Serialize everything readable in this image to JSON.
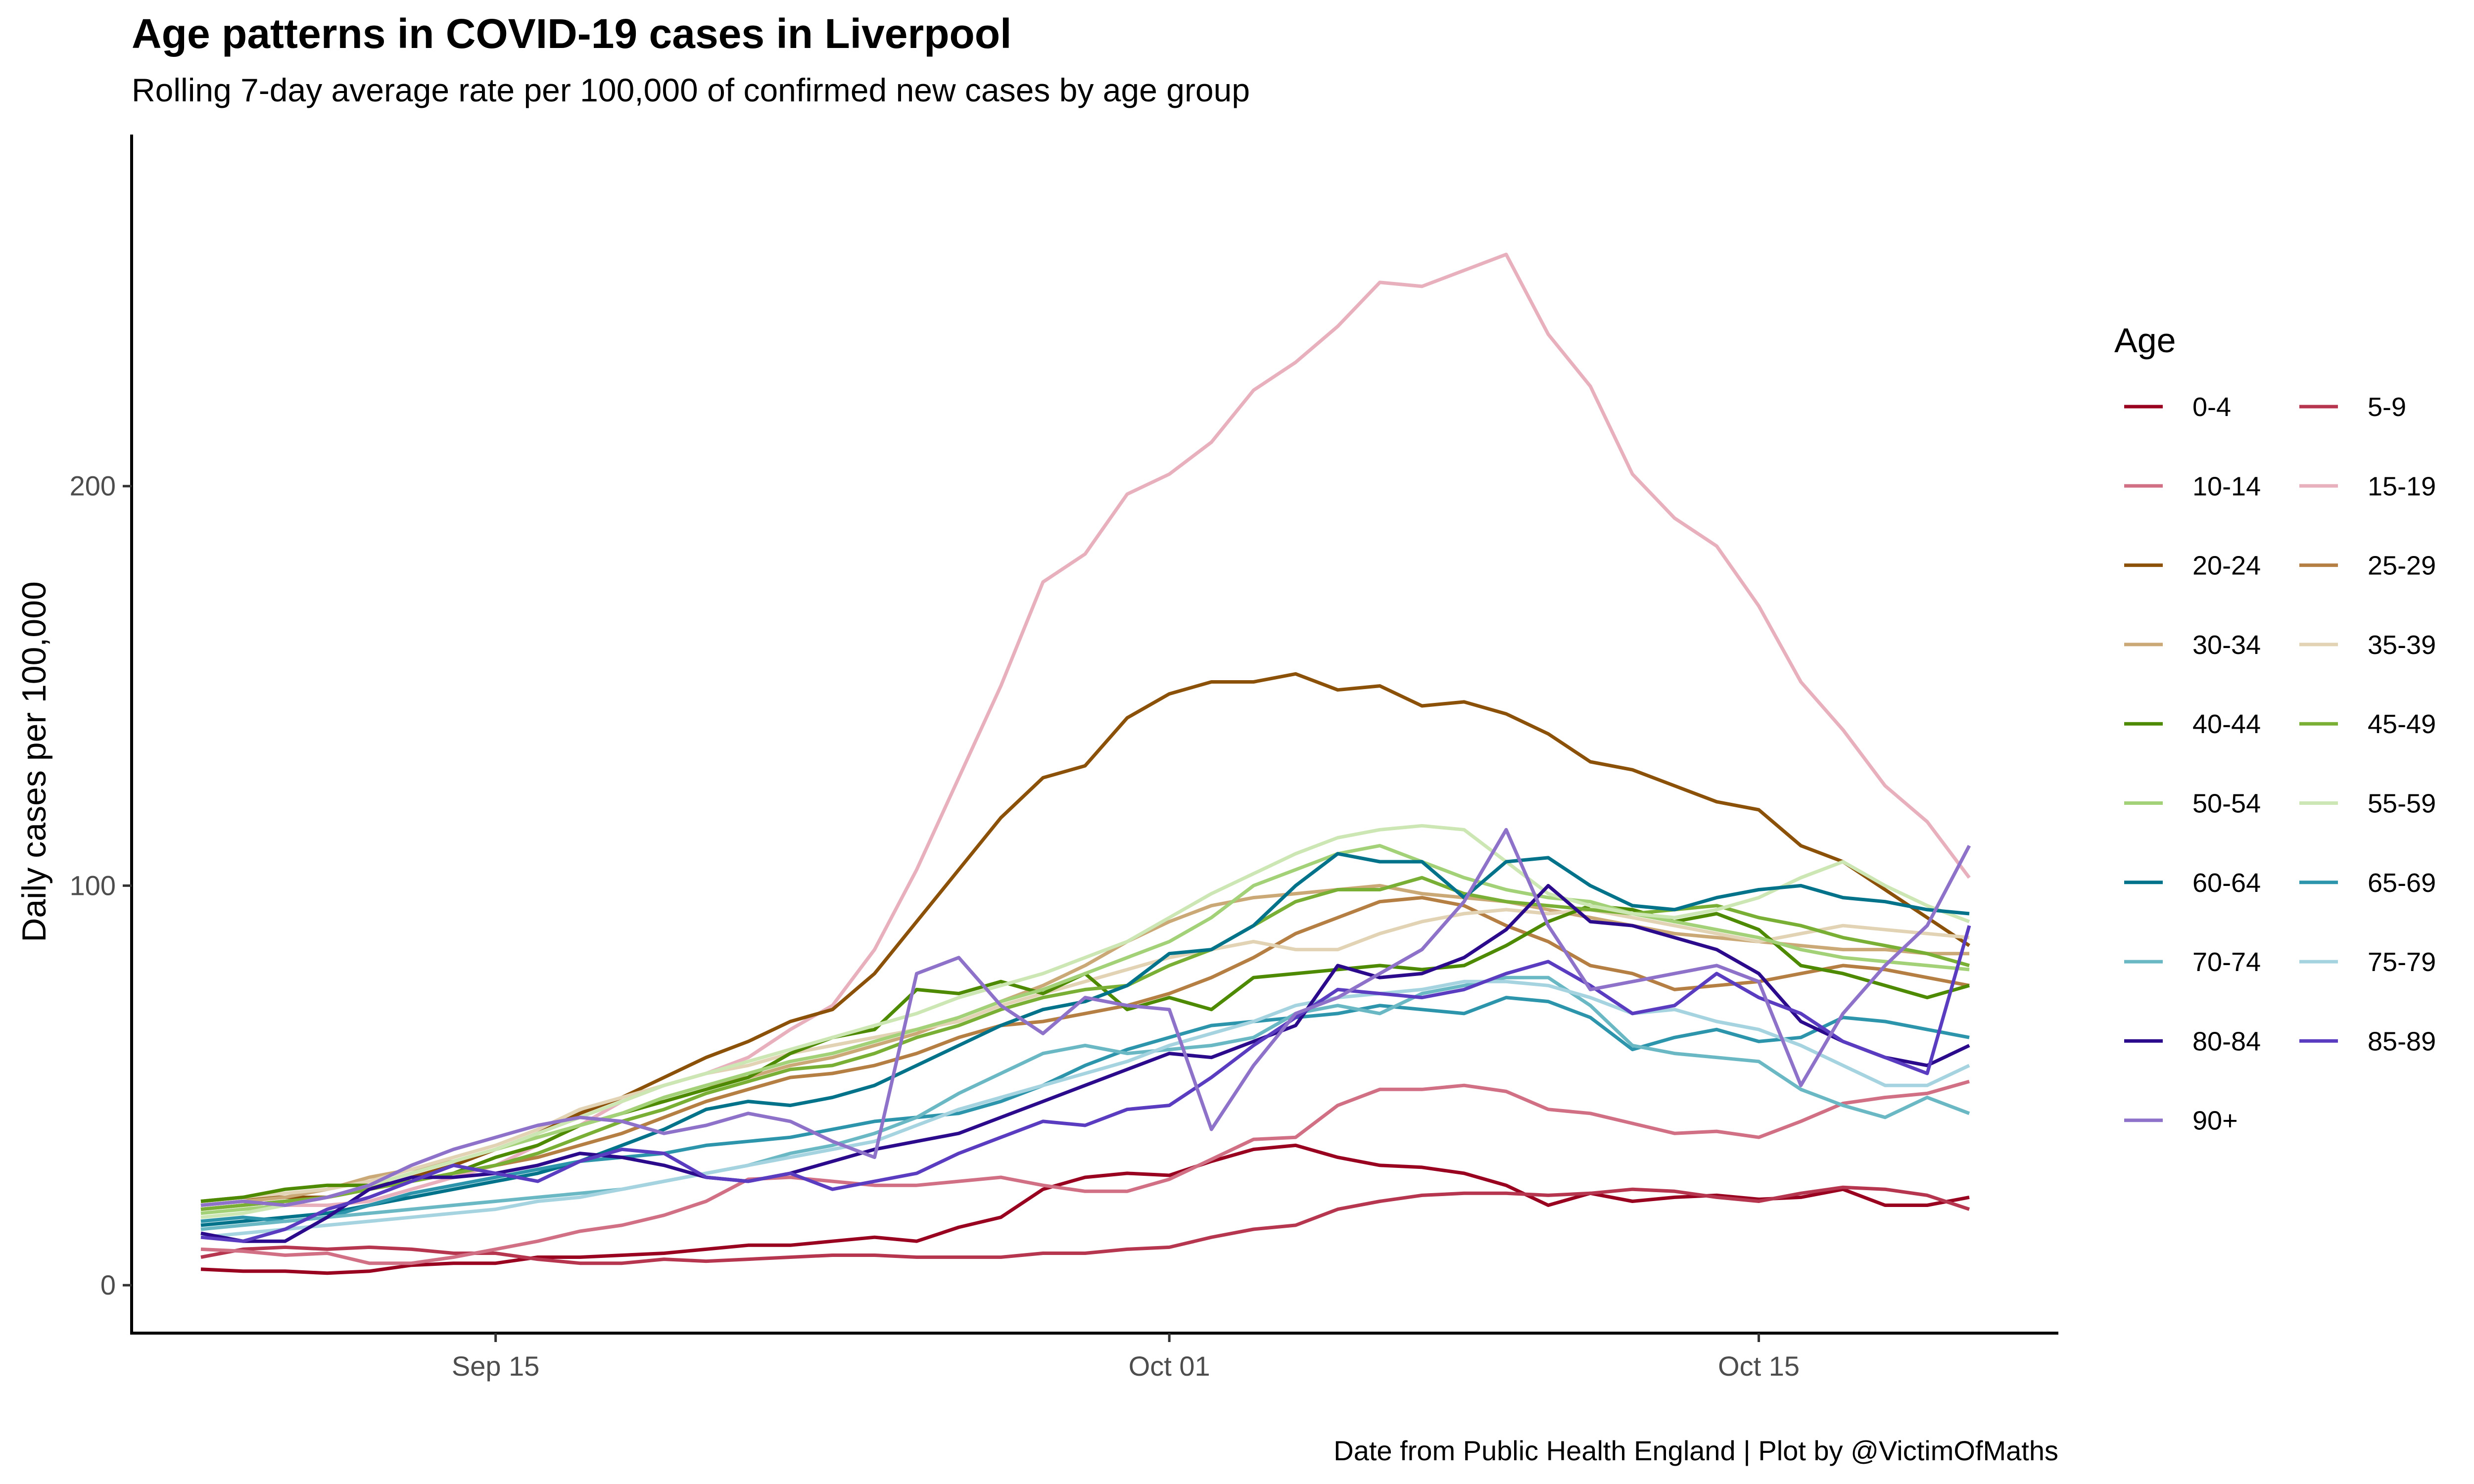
{
  "chart_data": {
    "type": "line",
    "title": "Age patterns in COVID-19 cases in Liverpool",
    "subtitle": "Rolling 7-day average rate per 100,000 of confirmed new cases by age group",
    "xlabel": "",
    "ylabel": "Daily cases per 100,000",
    "caption": "Date from Public Health England | Plot by @VictimOfMaths",
    "legend_title": "Age",
    "legend_position": "right",
    "grid": false,
    "x": [
      "Sep 08",
      "Sep 09",
      "Sep 10",
      "Sep 11",
      "Sep 12",
      "Sep 13",
      "Sep 14",
      "Sep 15",
      "Sep 16",
      "Sep 17",
      "Sep 18",
      "Sep 19",
      "Sep 20",
      "Sep 21",
      "Sep 22",
      "Sep 23",
      "Sep 24",
      "Sep 25",
      "Sep 26",
      "Sep 27",
      "Sep 28",
      "Sep 29",
      "Sep 30",
      "Oct 01",
      "Oct 02",
      "Oct 03",
      "Oct 04",
      "Oct 05",
      "Oct 06",
      "Oct 07",
      "Oct 08",
      "Oct 09",
      "Oct 10",
      "Oct 11",
      "Oct 12",
      "Oct 13",
      "Oct 14",
      "Oct 15",
      "Oct 16",
      "Oct 17",
      "Oct 18",
      "Oct 19",
      "Oct 20"
    ],
    "x_ticks": [
      "Sep 15",
      "Oct 01",
      "Oct 15"
    ],
    "x_tick_index": [
      7,
      23,
      37
    ],
    "ylim": [
      -12,
      288
    ],
    "y_ticks": [
      0,
      100,
      200
    ],
    "series": [
      {
        "name": "0-4",
        "color": "#99001f",
        "values": [
          4,
          3.5,
          3.5,
          3,
          3.5,
          5,
          5.5,
          5.5,
          7,
          7,
          7.5,
          8,
          9,
          10,
          10,
          11,
          12,
          11,
          14.5,
          17,
          24,
          27,
          28,
          27.5,
          31,
          34,
          35,
          32,
          30,
          29.5,
          28,
          25,
          20,
          23,
          21,
          22,
          22.5,
          21.5,
          22,
          24,
          20,
          20,
          22
        ]
      },
      {
        "name": "5-9",
        "color": "#b5364e",
        "values": [
          7,
          9,
          9.5,
          9,
          9.5,
          9,
          8,
          8,
          6.5,
          5.5,
          5.5,
          6.5,
          6,
          6.5,
          7,
          7.5,
          7.5,
          7,
          7,
          7,
          8,
          8,
          9,
          9.5,
          12,
          14,
          15,
          19,
          21,
          22.5,
          23,
          23,
          22.5,
          23,
          24,
          23.5,
          22,
          21,
          23,
          24.5,
          24,
          22.5,
          19
        ]
      },
      {
        "name": "10-14",
        "color": "#d16f84",
        "values": [
          9,
          8.5,
          7.5,
          8,
          5.5,
          5.5,
          7,
          9,
          11,
          13.5,
          15,
          17.5,
          21,
          26.5,
          27,
          26,
          25,
          25,
          26,
          27,
          25,
          23.5,
          23.5,
          26.5,
          31.5,
          36.5,
          37,
          45,
          49,
          49,
          50,
          48.5,
          44,
          43,
          40.5,
          38,
          38.5,
          37,
          41,
          45.5,
          47,
          48,
          51
        ]
      },
      {
        "name": "15-19",
        "color": "#e8b0bc",
        "values": [
          20,
          21,
          20,
          20,
          21,
          24,
          27,
          30,
          35,
          40,
          46,
          50,
          53,
          57,
          64,
          70,
          84,
          104,
          127,
          150,
          176,
          183,
          198,
          203,
          211,
          224,
          231,
          240,
          251,
          250,
          254,
          258,
          238,
          225,
          203,
          192,
          185,
          170,
          151,
          139,
          125,
          116,
          102
        ]
      },
      {
        "name": "20-24",
        "color": "#8c5109",
        "values": [
          21,
          22,
          22,
          22,
          24,
          27,
          30,
          34,
          38,
          43,
          47,
          52,
          57,
          61,
          66,
          69,
          78,
          91,
          104,
          117,
          127,
          130,
          142,
          148,
          151,
          151,
          153,
          149,
          150,
          145,
          146,
          143,
          138,
          131,
          129,
          125,
          121,
          119,
          110,
          106,
          99,
          92,
          85
        ]
      },
      {
        "name": "25-29",
        "color": "#b57f44",
        "values": [
          19,
          20,
          21,
          22,
          24,
          26,
          28,
          30,
          32,
          35,
          38,
          42,
          46,
          49,
          52,
          53,
          55,
          58,
          62,
          65,
          66,
          68,
          70,
          73,
          77,
          82,
          88,
          92,
          96,
          97,
          95,
          90,
          86,
          80,
          78,
          74,
          75,
          76,
          78,
          80,
          79,
          77,
          75
        ]
      },
      {
        "name": "30-34",
        "color": "#cba977",
        "values": [
          20,
          21,
          22,
          24,
          27,
          29,
          31,
          34,
          37,
          40,
          43,
          47,
          50,
          52,
          55,
          57,
          60,
          63,
          67,
          71,
          75,
          80,
          86,
          91,
          95,
          97,
          98,
          99,
          100,
          98,
          97,
          96,
          94,
          92,
          90,
          88,
          87,
          86,
          85,
          84,
          84,
          83,
          83
        ]
      },
      {
        "name": "35-39",
        "color": "#e2d3b5",
        "values": [
          21,
          22,
          23,
          24,
          26,
          29,
          32,
          35,
          39,
          44,
          47,
          50,
          53,
          55,
          58,
          60,
          62,
          64,
          66,
          70,
          73,
          76,
          79,
          82,
          84,
          86,
          84,
          84,
          88,
          91,
          93,
          94,
          93,
          94,
          92,
          90,
          88,
          86,
          88,
          90,
          89,
          88,
          87
        ]
      },
      {
        "name": "40-44",
        "color": "#4e8a00",
        "values": [
          21,
          22,
          24,
          25,
          25,
          26,
          28,
          32,
          35,
          40,
          43,
          46,
          49,
          52,
          58,
          62,
          64,
          74,
          73,
          76,
          73,
          78,
          69,
          72,
          69,
          77,
          78,
          79,
          80,
          79,
          80,
          85,
          91,
          95,
          94,
          91,
          93,
          89,
          80,
          78,
          75,
          72,
          75
        ]
      },
      {
        "name": "45-49",
        "color": "#7aaf35",
        "values": [
          19,
          20,
          21,
          22,
          24,
          26,
          28,
          30,
          33,
          37,
          41,
          44,
          48,
          51,
          54,
          55,
          58,
          62,
          65,
          69,
          72,
          74,
          75,
          80,
          84,
          90,
          96,
          99,
          99,
          102,
          98,
          96,
          95,
          94,
          93,
          94,
          95,
          92,
          90,
          87,
          85,
          83,
          80
        ]
      },
      {
        "name": "50-54",
        "color": "#a3d177",
        "values": [
          18,
          19,
          20,
          22,
          25,
          28,
          31,
          34,
          37,
          40,
          43,
          47,
          50,
          53,
          56,
          58,
          61,
          64,
          67,
          71,
          74,
          78,
          82,
          86,
          92,
          100,
          104,
          108,
          110,
          106,
          102,
          99,
          97,
          96,
          93,
          91,
          89,
          87,
          84,
          82,
          81,
          80,
          79
        ]
      },
      {
        "name": "55-59",
        "color": "#cde7b4",
        "values": [
          17,
          18,
          20,
          22,
          25,
          28,
          31,
          34,
          38,
          42,
          46,
          50,
          53,
          56,
          59,
          62,
          65,
          68,
          72,
          75,
          78,
          82,
          86,
          92,
          98,
          103,
          108,
          112,
          114,
          115,
          114,
          106,
          98,
          95,
          93,
          92,
          94,
          97,
          102,
          106,
          100,
          95,
          91
        ]
      },
      {
        "name": "60-64",
        "color": "#00728a",
        "values": [
          15,
          16,
          17,
          18,
          20,
          22,
          24,
          26,
          28,
          31,
          35,
          39,
          44,
          46,
          45,
          47,
          50,
          55,
          60,
          65,
          69,
          71,
          75,
          83,
          84,
          90,
          100,
          108,
          106,
          106,
          97,
          106,
          107,
          100,
          95,
          94,
          97,
          99,
          100,
          97,
          96,
          94,
          93
        ]
      },
      {
        "name": "65-69",
        "color": "#2c95ab",
        "values": [
          16,
          17,
          16,
          17,
          20,
          23,
          25,
          27,
          29,
          31,
          32,
          33,
          35,
          36,
          37,
          39,
          41,
          42,
          43,
          46,
          50,
          55,
          59,
          62,
          65,
          66,
          67,
          68,
          70,
          69,
          68,
          72,
          71,
          67,
          59,
          62,
          64,
          61,
          62,
          67,
          66,
          64,
          62
        ]
      },
      {
        "name": "70-74",
        "color": "#6bb8c5",
        "values": [
          14,
          15,
          16,
          17,
          18,
          19,
          20,
          21,
          22,
          23,
          24,
          26,
          28,
          30,
          33,
          35,
          38,
          42,
          48,
          53,
          58,
          60,
          58,
          59,
          60,
          62,
          68,
          70,
          68,
          73,
          75,
          77,
          77,
          70,
          60,
          58,
          57,
          56,
          49,
          45,
          42,
          47,
          43
        ]
      },
      {
        "name": "75-79",
        "color": "#a5d4e0",
        "values": [
          12,
          13,
          14,
          15,
          16,
          17,
          18,
          19,
          21,
          22,
          24,
          26,
          28,
          30,
          32,
          34,
          36,
          40,
          44,
          47,
          50,
          53,
          56,
          60,
          63,
          66,
          70,
          72,
          73,
          74,
          76,
          76,
          75,
          72,
          68,
          69,
          66,
          64,
          60,
          55,
          50,
          50,
          55
        ]
      },
      {
        "name": "80-84",
        "color": "#2b0a8c",
        "values": [
          13,
          11,
          11,
          17,
          24,
          27,
          27,
          28,
          30,
          33,
          32,
          30,
          27,
          26,
          28,
          31,
          34,
          36,
          38,
          42,
          46,
          50,
          54,
          58,
          57,
          61,
          65,
          80,
          77,
          78,
          82,
          89,
          100,
          91,
          90,
          87,
          84,
          78,
          66,
          61,
          57,
          55,
          60
        ]
      },
      {
        "name": "85-89",
        "color": "#5a3cc0",
        "values": [
          12,
          11,
          14,
          19,
          22,
          26,
          30,
          28,
          26,
          31,
          34,
          33,
          27,
          26,
          28,
          24,
          26,
          28,
          33,
          37,
          41,
          40,
          44,
          45,
          52,
          60,
          67,
          74,
          73,
          72,
          74,
          78,
          81,
          75,
          68,
          70,
          78,
          72,
          68,
          61,
          57,
          53,
          90
        ]
      },
      {
        "name": "90+",
        "color": "#8e72c9",
        "values": [
          20,
          21,
          20,
          22,
          25,
          30,
          34,
          37,
          40,
          42,
          41,
          38,
          40,
          43,
          41,
          36,
          32,
          78,
          82,
          70,
          63,
          72,
          70,
          69,
          39,
          55,
          68,
          72,
          78,
          84,
          96,
          114,
          90,
          74,
          76,
          78,
          80,
          76,
          50,
          68,
          80,
          90,
          110
        ]
      }
    ]
  }
}
